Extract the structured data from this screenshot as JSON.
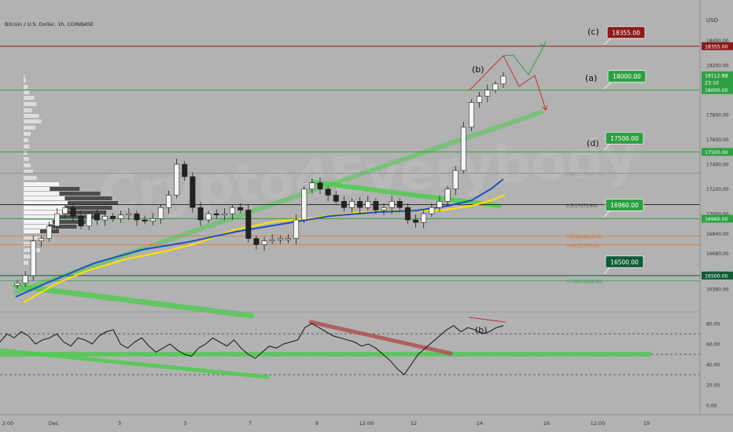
{
  "header": {
    "symbol_title": "Bitcoin / U.S. Dollar, 1h, COINBASE"
  },
  "currency_label": "USD",
  "watermark": "Crypto4Everybody",
  "colors": {
    "background": "#b2b2b2",
    "red": "#8b1a1a",
    "green": "#2ea043",
    "dark_green": "#0f5c36",
    "orange": "#e07020",
    "blue_ma": "#1f4fbf",
    "yellow_ma": "#ffe000",
    "green_band": "#4ecb4e",
    "red_band": "#b05050",
    "candle_up": "#f5f5f5",
    "candle_down": "#222222"
  },
  "price_axis": {
    "ticks": [
      "18400.00",
      "18200.00",
      "17800.00",
      "17600.00",
      "17400.00",
      "17200.00",
      "17000.00",
      "16840.00",
      "16680.00",
      "16520.00",
      "16390.00"
    ],
    "badges": [
      {
        "text": "18355.00",
        "color": "#8b1a1a"
      },
      {
        "text": "18112.88",
        "color": "#2ea043",
        "sub": "23:10"
      },
      {
        "text": "18000.00",
        "color": "#2ea043"
      },
      {
        "text": "17500.00",
        "color": "#2ea043"
      },
      {
        "text": "16960.00",
        "color": "#2ea043"
      },
      {
        "text": "16500.00",
        "color": "#0f5c36"
      }
    ]
  },
  "levels": [
    {
      "label": "(c)",
      "badge": "18355.00",
      "color": "#8b1a1a"
    },
    {
      "label": "(a)",
      "badge": "18000.00",
      "color": "#2ea043"
    },
    {
      "label": "(d)",
      "badge": "17500.00",
      "color": "#2ea043"
    },
    {
      "label": "",
      "badge": "16960.00",
      "color": "#2ea043"
    },
    {
      "label": "",
      "badge": "16500.00",
      "color": "#0f5c36"
    }
  ],
  "fib_labels": [
    {
      "text": "0.382(17328.17)",
      "color": "#8a8a8a"
    },
    {
      "text": "0.5(17073.60)",
      "color": "#333333"
    },
    {
      "text": "0.618(16819.03)",
      "color": "#e07020"
    },
    {
      "text": "0.65(16750.00)",
      "color": "#e07020"
    },
    {
      "text": "0.786(16456.60)",
      "color": "#2ea043"
    }
  ],
  "wave_labels": {
    "price_b": "(b)",
    "rsi_b": "(b)"
  },
  "rsi_axis": {
    "ticks": [
      "80.00",
      "60.00",
      "40.00",
      "20.00",
      "0.00"
    ]
  },
  "time_axis": {
    "ticks": [
      "2:00",
      "Dec",
      "3",
      "5",
      "7",
      "9",
      "12:00",
      "12",
      "14",
      "16",
      "12:00",
      "19"
    ]
  },
  "chart_data": {
    "type": "candlestick",
    "title": "Bitcoin / U.S. Dollar, 1h, COINBASE",
    "ylim": [
      16390,
      18420
    ],
    "horizontal_levels": [
      18355,
      18000,
      17500,
      16960,
      16500
    ],
    "fibonacci": [
      {
        "ratio": 0.382,
        "price": 17328.17
      },
      {
        "ratio": 0.5,
        "price": 17073.6
      },
      {
        "ratio": 0.618,
        "price": 16819.03
      },
      {
        "ratio": 0.65,
        "price": 16750.0
      },
      {
        "ratio": 0.786,
        "price": 16456.6
      }
    ],
    "last_price": 18112.88,
    "close_path": [
      16440,
      16500,
      16780,
      16800,
      16900,
      17000,
      17050,
      16980,
      16900,
      17000,
      16950,
      16980,
      16960,
      16990,
      17000,
      16950,
      16940,
      16960,
      17050,
      17150,
      17400,
      17300,
      17050,
      16950,
      17000,
      16990,
      17000,
      17050,
      17030,
      16800,
      16750,
      16780,
      16790,
      16800,
      16800,
      16950,
      17200,
      17250,
      17200,
      17150,
      17100,
      17050,
      17100,
      17050,
      17100,
      17030,
      17050,
      17100,
      17050,
      16950,
      16930,
      17000,
      17050,
      17100,
      17200,
      17350,
      17700,
      17900,
      17950,
      18000,
      18050,
      18112.88
    ],
    "series": [
      {
        "name": "RSI",
        "ylim": [
          0,
          100
        ],
        "values": [
          62,
          70,
          66,
          72,
          68,
          60,
          64,
          66,
          70,
          62,
          58,
          66,
          64,
          60,
          68,
          72,
          74,
          60,
          56,
          62,
          66,
          58,
          52,
          56,
          60,
          54,
          50,
          48,
          56,
          60,
          66,
          62,
          58,
          64,
          56,
          50,
          46,
          52,
          58,
          56,
          60,
          62,
          64,
          76,
          80,
          76,
          72,
          68,
          66,
          64,
          62,
          58,
          60,
          56,
          50,
          44,
          36,
          30,
          40,
          50,
          56,
          62,
          68,
          74,
          78,
          72,
          76,
          74,
          70,
          72,
          76,
          78
        ]
      }
    ],
    "rsi_levels": [
      70,
      50,
      30
    ]
  }
}
